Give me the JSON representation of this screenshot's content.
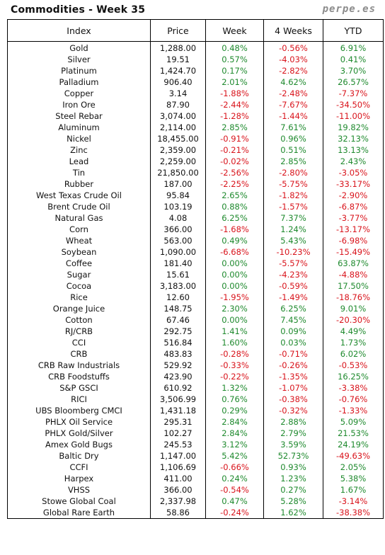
{
  "header": {
    "title": "Commodities - Week 35",
    "brand": "perpe.es"
  },
  "columns": [
    "Index",
    "Price",
    "Week",
    "4 Weeks",
    "YTD"
  ],
  "colors": {
    "positive": "#1f8a2e",
    "negative": "#d9141c"
  },
  "rows": [
    {
      "name": "Gold",
      "price": "1,288.00",
      "week": "0.48%",
      "w4": "-0.56%",
      "ytd": "6.91%"
    },
    {
      "name": "Silver",
      "price": "19.51",
      "week": "0.57%",
      "w4": "-4.03%",
      "ytd": "0.41%"
    },
    {
      "name": "Platinum",
      "price": "1,424.70",
      "week": "0.17%",
      "w4": "-2.82%",
      "ytd": "3.70%"
    },
    {
      "name": "Palladium",
      "price": "906.40",
      "week": "2.01%",
      "w4": "4.62%",
      "ytd": "26.57%"
    },
    {
      "name": "Copper",
      "price": "3.14",
      "week": "-1.88%",
      "w4": "-2.48%",
      "ytd": "-7.37%"
    },
    {
      "name": "Iron Ore",
      "price": "87.90",
      "week": "-2.44%",
      "w4": "-7.67%",
      "ytd": "-34.50%"
    },
    {
      "name": "Steel Rebar",
      "price": "3,074.00",
      "week": "-1.28%",
      "w4": "-1.44%",
      "ytd": "-11.00%"
    },
    {
      "name": "Aluminum",
      "price": "2,114.00",
      "week": "2.85%",
      "w4": "7.61%",
      "ytd": "19.82%"
    },
    {
      "name": "Nickel",
      "price": "18,455.00",
      "week": "-0.91%",
      "w4": "0.96%",
      "ytd": "32.13%"
    },
    {
      "name": "Zinc",
      "price": "2,359.00",
      "week": "-0.21%",
      "w4": "0.51%",
      "ytd": "13.13%"
    },
    {
      "name": "Lead",
      "price": "2,259.00",
      "week": "-0.02%",
      "w4": "2.85%",
      "ytd": "2.43%"
    },
    {
      "name": "Tin",
      "price": "21,850.00",
      "week": "-2.56%",
      "w4": "-2.80%",
      "ytd": "-3.05%"
    },
    {
      "name": "Rubber",
      "price": "187.00",
      "week": "-2.25%",
      "w4": "-5.75%",
      "ytd": "-33.17%"
    },
    {
      "name": "West Texas Crude Oil",
      "price": "95.84",
      "week": "2.65%",
      "w4": "-1.82%",
      "ytd": "-2.90%"
    },
    {
      "name": "Brent Crude Oil",
      "price": "103.19",
      "week": "0.88%",
      "w4": "-1.57%",
      "ytd": "-6.87%"
    },
    {
      "name": "Natural Gas",
      "price": "4.08",
      "week": "6.25%",
      "w4": "7.37%",
      "ytd": "-3.77%"
    },
    {
      "name": "Corn",
      "price": "366.00",
      "week": "-1.68%",
      "w4": "1.24%",
      "ytd": "-13.17%"
    },
    {
      "name": "Wheat",
      "price": "563.00",
      "week": "0.49%",
      "w4": "5.43%",
      "ytd": "-6.98%"
    },
    {
      "name": "Soybean",
      "price": "1,090.00",
      "week": "-6.68%",
      "w4": "-10.23%",
      "ytd": "-15.49%"
    },
    {
      "name": "Coffee",
      "price": "181.40",
      "week": "0.00%",
      "w4": "-5.57%",
      "ytd": "63.87%"
    },
    {
      "name": "Sugar",
      "price": "15.61",
      "week": "0.00%",
      "w4": "-4.23%",
      "ytd": "-4.88%"
    },
    {
      "name": "Cocoa",
      "price": "3,183.00",
      "week": "0.00%",
      "w4": "-0.59%",
      "ytd": "17.50%"
    },
    {
      "name": "Rice",
      "price": "12.60",
      "week": "-1.95%",
      "w4": "-1.49%",
      "ytd": "-18.76%"
    },
    {
      "name": "Orange Juice",
      "price": "148.75",
      "week": "2.30%",
      "w4": "6.25%",
      "ytd": "9.01%"
    },
    {
      "name": "Cotton",
      "price": "67.46",
      "week": "0.00%",
      "w4": "7.45%",
      "ytd": "-20.30%"
    },
    {
      "name": "RJ/CRB",
      "price": "292.75",
      "week": "1.41%",
      "w4": "0.09%",
      "ytd": "4.49%"
    },
    {
      "name": "CCI",
      "price": "516.84",
      "week": "1.60%",
      "w4": "0.03%",
      "ytd": "1.73%"
    },
    {
      "name": "CRB",
      "price": "483.83",
      "week": "-0.28%",
      "w4": "-0.71%",
      "ytd": "6.02%"
    },
    {
      "name": "CRB Raw Industrials",
      "price": "529.92",
      "week": "-0.33%",
      "w4": "-0.26%",
      "ytd": "-0.53%"
    },
    {
      "name": "CRB Foodstuffs",
      "price": "423.90",
      "week": "-0.22%",
      "w4": "-1.35%",
      "ytd": "16.25%"
    },
    {
      "name": "S&P GSCI",
      "price": "610.92",
      "week": "1.32%",
      "w4": "-1.07%",
      "ytd": "-3.38%"
    },
    {
      "name": "RICI",
      "price": "3,506.99",
      "week": "0.76%",
      "w4": "-0.38%",
      "ytd": "-0.76%"
    },
    {
      "name": "UBS Bloomberg CMCI",
      "price": "1,431.18",
      "week": "0.29%",
      "w4": "-0.32%",
      "ytd": "-1.33%"
    },
    {
      "name": "PHLX Oil Service",
      "price": "295.31",
      "week": "2.84%",
      "w4": "2.88%",
      "ytd": "5.09%"
    },
    {
      "name": "PHLX Gold/Silver",
      "price": "102.27",
      "week": "2.84%",
      "w4": "2.79%",
      "ytd": "21.53%"
    },
    {
      "name": "Amex Gold Bugs",
      "price": "245.53",
      "week": "3.12%",
      "w4": "3.59%",
      "ytd": "24.19%"
    },
    {
      "name": "Baltic Dry",
      "price": "1,147.00",
      "week": "5.42%",
      "w4": "52.73%",
      "ytd": "-49.63%"
    },
    {
      "name": "CCFI",
      "price": "1,106.69",
      "week": "-0.66%",
      "w4": "0.93%",
      "ytd": "2.05%"
    },
    {
      "name": "Harpex",
      "price": "411.00",
      "week": "0.24%",
      "w4": "1.23%",
      "ytd": "5.38%"
    },
    {
      "name": "VHSS",
      "price": "366.00",
      "week": "-0.54%",
      "w4": "0.27%",
      "ytd": "1.67%"
    },
    {
      "name": "Stowe Global Coal",
      "price": "2,337.98",
      "week": "0.47%",
      "w4": "5.28%",
      "ytd": "-3.14%"
    },
    {
      "name": "Global Rare Earth",
      "price": "58.86",
      "week": "-0.24%",
      "w4": "1.62%",
      "ytd": "-38.38%"
    }
  ]
}
